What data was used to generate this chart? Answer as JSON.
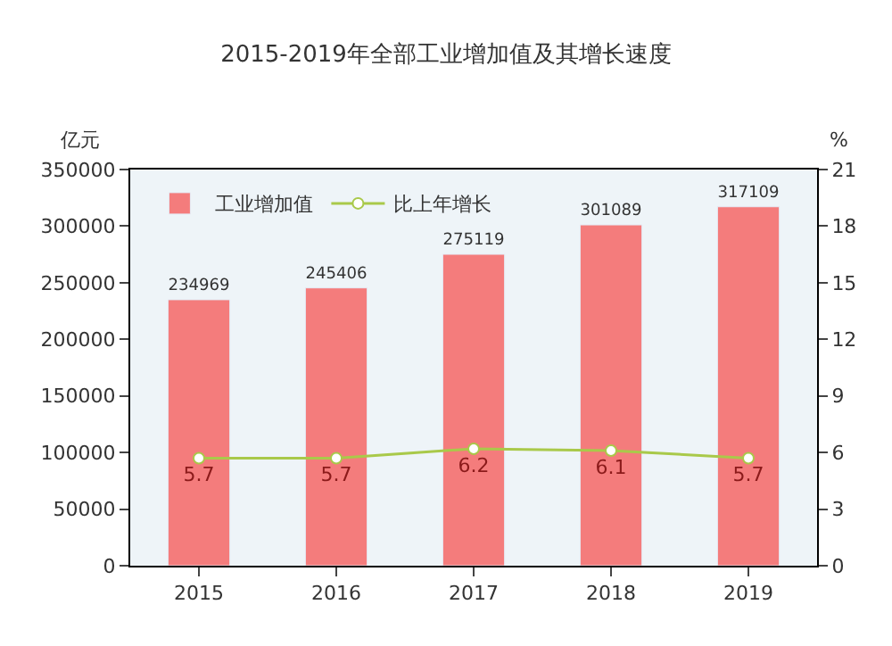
{
  "chart_data": {
    "type": "bar",
    "title": "2015-2019年全部工业增加值及其增长速度",
    "categories": [
      "2015",
      "2016",
      "2017",
      "2018",
      "2019"
    ],
    "series": [
      {
        "name": "工业增加值",
        "color": "#f47c7c",
        "values": [
          234969,
          245406,
          275119,
          301089,
          317109
        ],
        "data_labels": true
      },
      {
        "name": "比上年增长",
        "type": "line",
        "axis": "y2",
        "color": "#a9c94a",
        "values": [
          5.7,
          5.7,
          6.2,
          6.1,
          5.7
        ],
        "marker": "circle",
        "data_labels": true
      }
    ],
    "ylabel": "亿元",
    "y2label": "%",
    "ylim": [
      0,
      350000
    ],
    "yticks": [
      0,
      50000,
      100000,
      150000,
      200000,
      250000,
      300000,
      350000
    ],
    "y2lim": [
      0,
      21
    ],
    "y2ticks": [
      0,
      3,
      6,
      9,
      12,
      15,
      18,
      21
    ],
    "legend": "top left",
    "grid": false
  }
}
